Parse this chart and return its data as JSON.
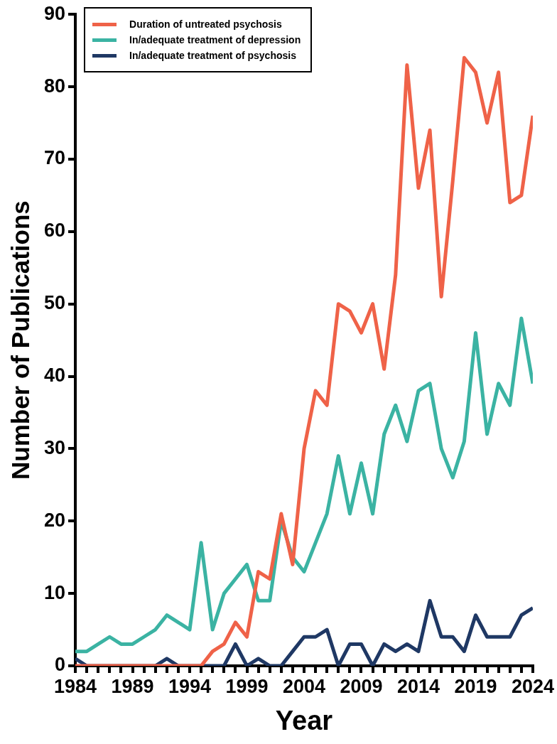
{
  "chart_data": {
    "type": "line",
    "xlabel": "Year",
    "ylabel": "Number of Publications",
    "x": [
      1984,
      1985,
      1986,
      1987,
      1988,
      1989,
      1990,
      1991,
      1992,
      1993,
      1994,
      1995,
      1996,
      1997,
      1998,
      1999,
      2000,
      2001,
      2002,
      2003,
      2004,
      2005,
      2006,
      2007,
      2008,
      2009,
      2010,
      2011,
      2012,
      2013,
      2014,
      2015,
      2016,
      2017,
      2018,
      2019,
      2020,
      2021,
      2022,
      2023,
      2024
    ],
    "series": [
      {
        "name": "Duration of untreated psychosis",
        "color": "#ef6248",
        "values": [
          0,
          0,
          0,
          0,
          0,
          0,
          0,
          0,
          0,
          0,
          0,
          0,
          2,
          3,
          6,
          4,
          13,
          12,
          21,
          14,
          30,
          38,
          36,
          50,
          49,
          46,
          50,
          41,
          54,
          83,
          66,
          74,
          51,
          67,
          84,
          82,
          75,
          82,
          64,
          65,
          76
        ]
      },
      {
        "name": "In/adequate treatment of depression",
        "color": "#3bb3a3",
        "values": [
          2,
          2,
          3,
          4,
          3,
          3,
          4,
          5,
          7,
          6,
          5,
          17,
          5,
          10,
          12,
          14,
          9,
          9,
          20,
          15,
          13,
          17,
          21,
          29,
          21,
          28,
          21,
          32,
          36,
          31,
          38,
          39,
          30,
          26,
          31,
          46,
          32,
          39,
          36,
          48,
          39
        ]
      },
      {
        "name": "In/adequate treatment of psychosis",
        "color": "#1f3864",
        "values": [
          1,
          0,
          0,
          0,
          0,
          0,
          0,
          0,
          1,
          0,
          0,
          0,
          0,
          0,
          3,
          0,
          1,
          0,
          0,
          2,
          4,
          4,
          5,
          0,
          3,
          3,
          0,
          3,
          2,
          3,
          2,
          9,
          4,
          4,
          2,
          7,
          4,
          4,
          4,
          7,
          8
        ]
      }
    ],
    "xlim": [
      1984,
      2024
    ],
    "xticks": [
      1984,
      {
        "value": 1985,
        "label": null
      },
      {
        "value": 1986,
        "label": null
      },
      {
        "value": 1987,
        "label": null
      },
      {
        "value": 1988,
        "label": null
      },
      1989,
      {
        "value": 1990,
        "label": null
      },
      {
        "value": 1991,
        "label": null
      },
      {
        "value": 1992,
        "label": null
      },
      {
        "value": 1993,
        "label": null
      },
      1994,
      {
        "value": 1995,
        "label": null
      },
      {
        "value": 1996,
        "label": null
      },
      {
        "value": 1997,
        "label": null
      },
      {
        "value": 1998,
        "label": null
      },
      1999,
      {
        "value": 2000,
        "label": null
      },
      {
        "value": 2001,
        "label": null
      },
      {
        "value": 2002,
        "label": null
      },
      {
        "value": 2003,
        "label": null
      },
      2004,
      {
        "value": 2005,
        "label": null
      },
      {
        "value": 2006,
        "label": null
      },
      {
        "value": 2007,
        "label": null
      },
      {
        "value": 2008,
        "label": null
      },
      2009,
      {
        "value": 2010,
        "label": null
      },
      {
        "value": 2011,
        "label": null
      },
      {
        "value": 2012,
        "label": null
      },
      {
        "value": 2013,
        "label": null
      },
      2014,
      {
        "value": 2015,
        "label": null
      },
      {
        "value": 2016,
        "label": null
      },
      {
        "value": 2017,
        "label": null
      },
      {
        "value": 2018,
        "label": null
      },
      2019,
      {
        "value": 2020,
        "label": null
      },
      {
        "value": 2021,
        "label": null
      },
      {
        "value": 2022,
        "label": null
      },
      {
        "value": 2023,
        "label": null
      },
      2024
    ],
    "ylim": [
      0,
      90
    ],
    "yticks": [
      0,
      10,
      20,
      30,
      40,
      50,
      60,
      70,
      80,
      90
    ],
    "grid": false,
    "legend": "top left",
    "marker": "none",
    "line_style": "solid"
  }
}
